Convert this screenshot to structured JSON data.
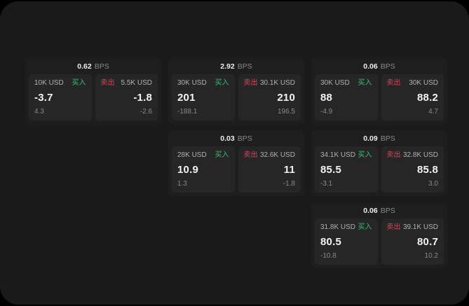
{
  "labels": {
    "unit": "BPS",
    "buy": "买入",
    "sell": "卖出"
  },
  "colors": {
    "buy_green": "#3abd77",
    "sell_red": "#d4465c",
    "panel_bg": "#1a1a1a",
    "card_bg": "#1e1e1e",
    "tile_bg": "#262626"
  },
  "cards": [
    {
      "bps": "0.62",
      "col": 1,
      "row": 1,
      "buy": {
        "amount": "10K USD",
        "price": "-3.7",
        "delta": "4.3"
      },
      "sell": {
        "amount": "5.5K USD",
        "price": "-1.8",
        "delta": "-2.6"
      }
    },
    {
      "bps": "2.92",
      "col": 2,
      "row": 1,
      "buy": {
        "amount": "30K USD",
        "price": "201",
        "delta": "-188.1"
      },
      "sell": {
        "amount": "30.1K USD",
        "price": "210",
        "delta": "196.5"
      }
    },
    {
      "bps": "0.06",
      "col": 3,
      "row": 1,
      "buy": {
        "amount": "30K USD",
        "price": "88",
        "delta": "-4.9"
      },
      "sell": {
        "amount": "30K USD",
        "price": "88.2",
        "delta": "4.7"
      }
    },
    {
      "bps": "0.03",
      "col": 2,
      "row": 2,
      "buy": {
        "amount": "28K USD",
        "price": "10.9",
        "delta": "1.3"
      },
      "sell": {
        "amount": "32.6K USD",
        "price": "11",
        "delta": "-1.8"
      }
    },
    {
      "bps": "0.09",
      "col": 3,
      "row": 2,
      "buy": {
        "amount": "34.1K USD",
        "price": "85.5",
        "delta": "-3.1"
      },
      "sell": {
        "amount": "32.8K USD",
        "price": "85.8",
        "delta": "3.0"
      }
    },
    {
      "bps": "0.06",
      "col": 3,
      "row": 3,
      "buy": {
        "amount": "31.8K USD",
        "price": "80.5",
        "delta": "-10.8"
      },
      "sell": {
        "amount": "39.1K USD",
        "price": "80.7",
        "delta": "10.2"
      }
    }
  ]
}
